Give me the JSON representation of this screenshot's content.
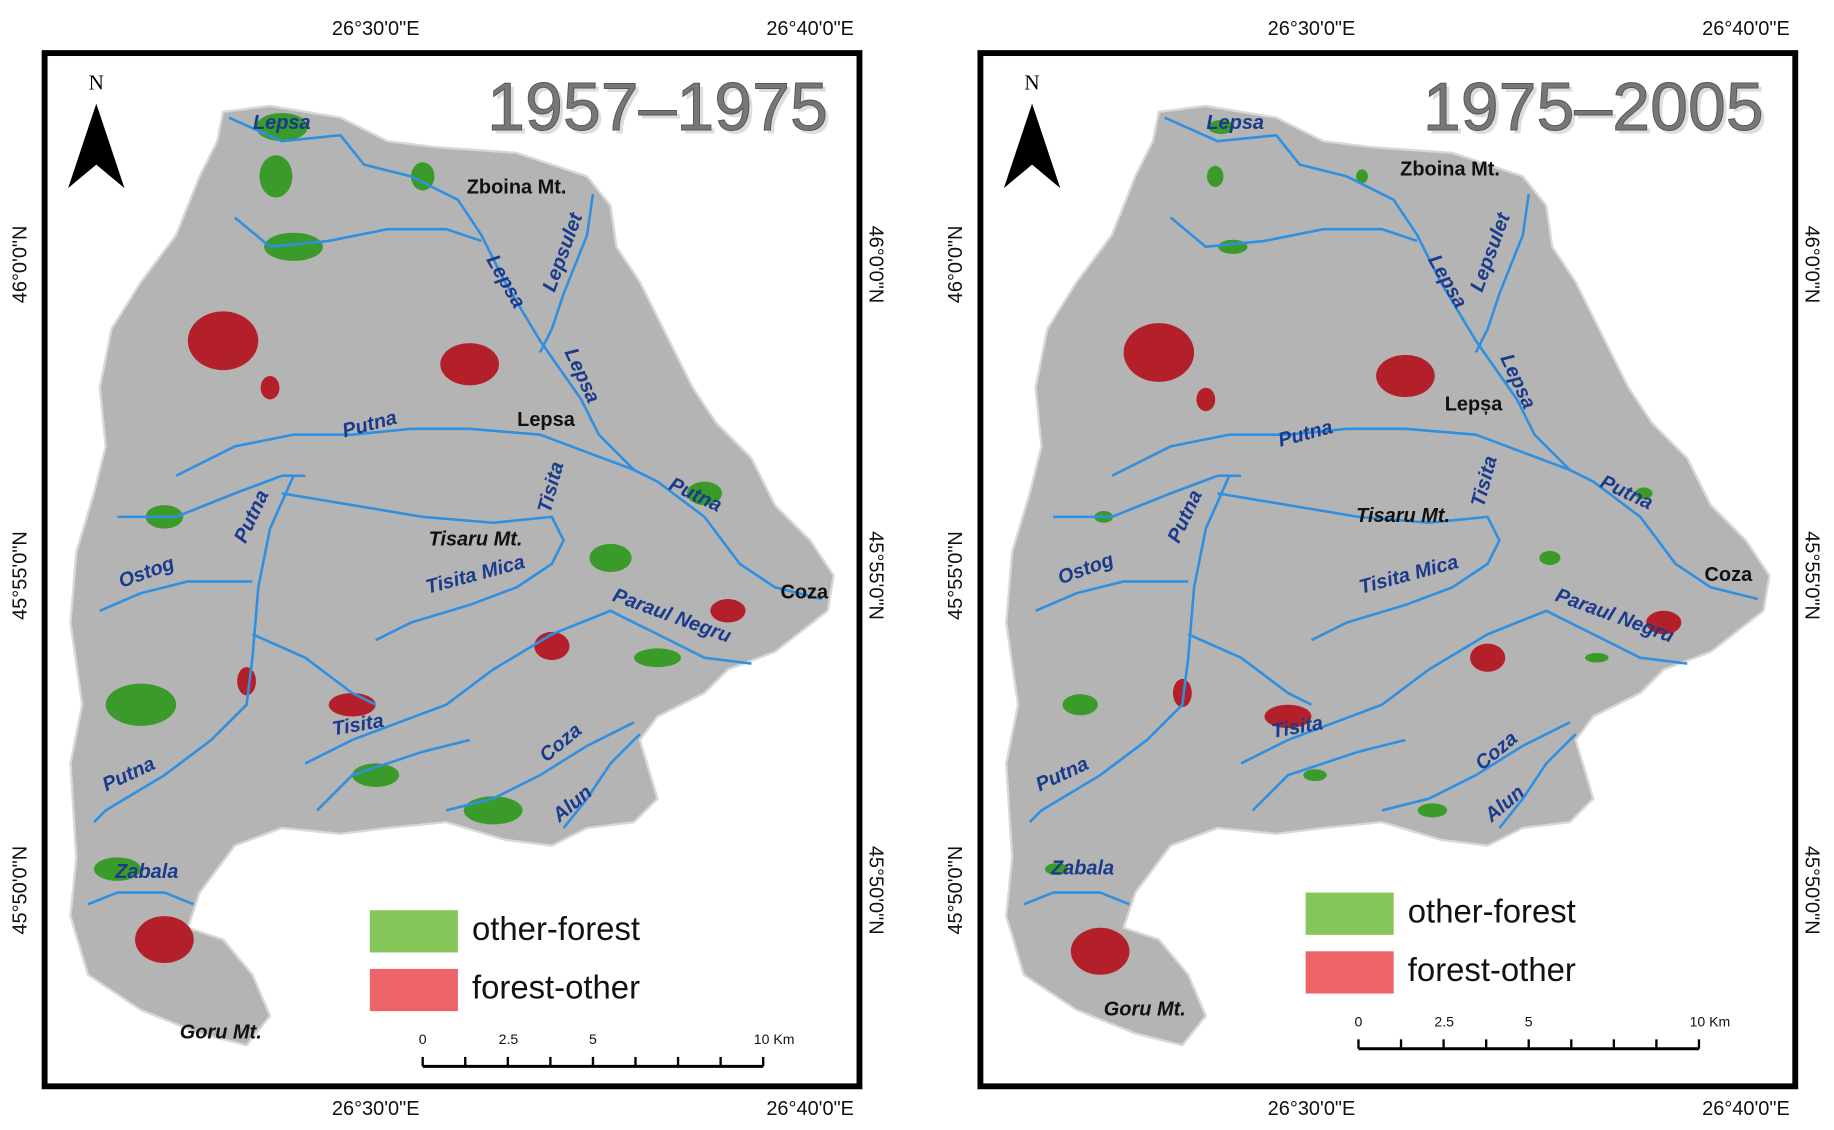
{
  "panels": [
    {
      "title": "1957–1975",
      "north": "N",
      "top_ticks": [
        "26°30'0\"E",
        "26°40'0\"E"
      ],
      "bottom_ticks": [
        "26°30'0\"E",
        "26°40'0\"E"
      ],
      "left_ticks": [
        "46°0'0\"N",
        "45°55'0\"N",
        "45°50'0\"N"
      ],
      "right_ticks": [
        "46°0'0\"N",
        "45°55'0\"N",
        "45°50'0\"N"
      ],
      "labels": [
        "Lepsa",
        "Zboina Mt.",
        "Lepsa",
        "Lepsulet",
        "Lepsa",
        "Putna",
        "Lepsa",
        "Tisita",
        "Putna",
        "Putna",
        "Tisaru Mt.",
        "Tisita Mica",
        "Ostog",
        "Paraul Negru",
        "Coza",
        "Tisita",
        "Coza",
        "Putna",
        "Alun",
        "Zabala",
        "Goru Mt."
      ],
      "legend": [
        "other-forest",
        "forest-other"
      ],
      "scale": [
        "0",
        "2.5",
        "5",
        "10 Km"
      ]
    },
    {
      "title": "1975–2005",
      "north": "N",
      "top_ticks": [
        "26°30'0\"E",
        "26°40'0\"E"
      ],
      "bottom_ticks": [
        "26°30'0\"E",
        "26°40'0\"E"
      ],
      "left_ticks": [
        "46°0'0\"N",
        "45°55'0\"N",
        "45°50'0\"N"
      ],
      "right_ticks": [
        "46°0'0\"N",
        "45°55'0\"N",
        "45°50'0\"N"
      ],
      "labels": [
        "Lepsa",
        "Zboina Mt.",
        "Lepsa",
        "Lepsulet",
        "Lepsa",
        "Putna",
        "Lepșa",
        "Tisita",
        "Putna",
        "Putna",
        "Tisaru Mt.",
        "Tisita Mica",
        "Ostog",
        "Paraul Negru",
        "Coza",
        "Tisita",
        "Coza",
        "Putna",
        "Alun",
        "Zabala",
        "Goru Mt."
      ],
      "legend": [
        "other-forest",
        "forest-other"
      ],
      "scale": [
        "0",
        "2.5",
        "5",
        "10 Km"
      ]
    }
  ]
}
